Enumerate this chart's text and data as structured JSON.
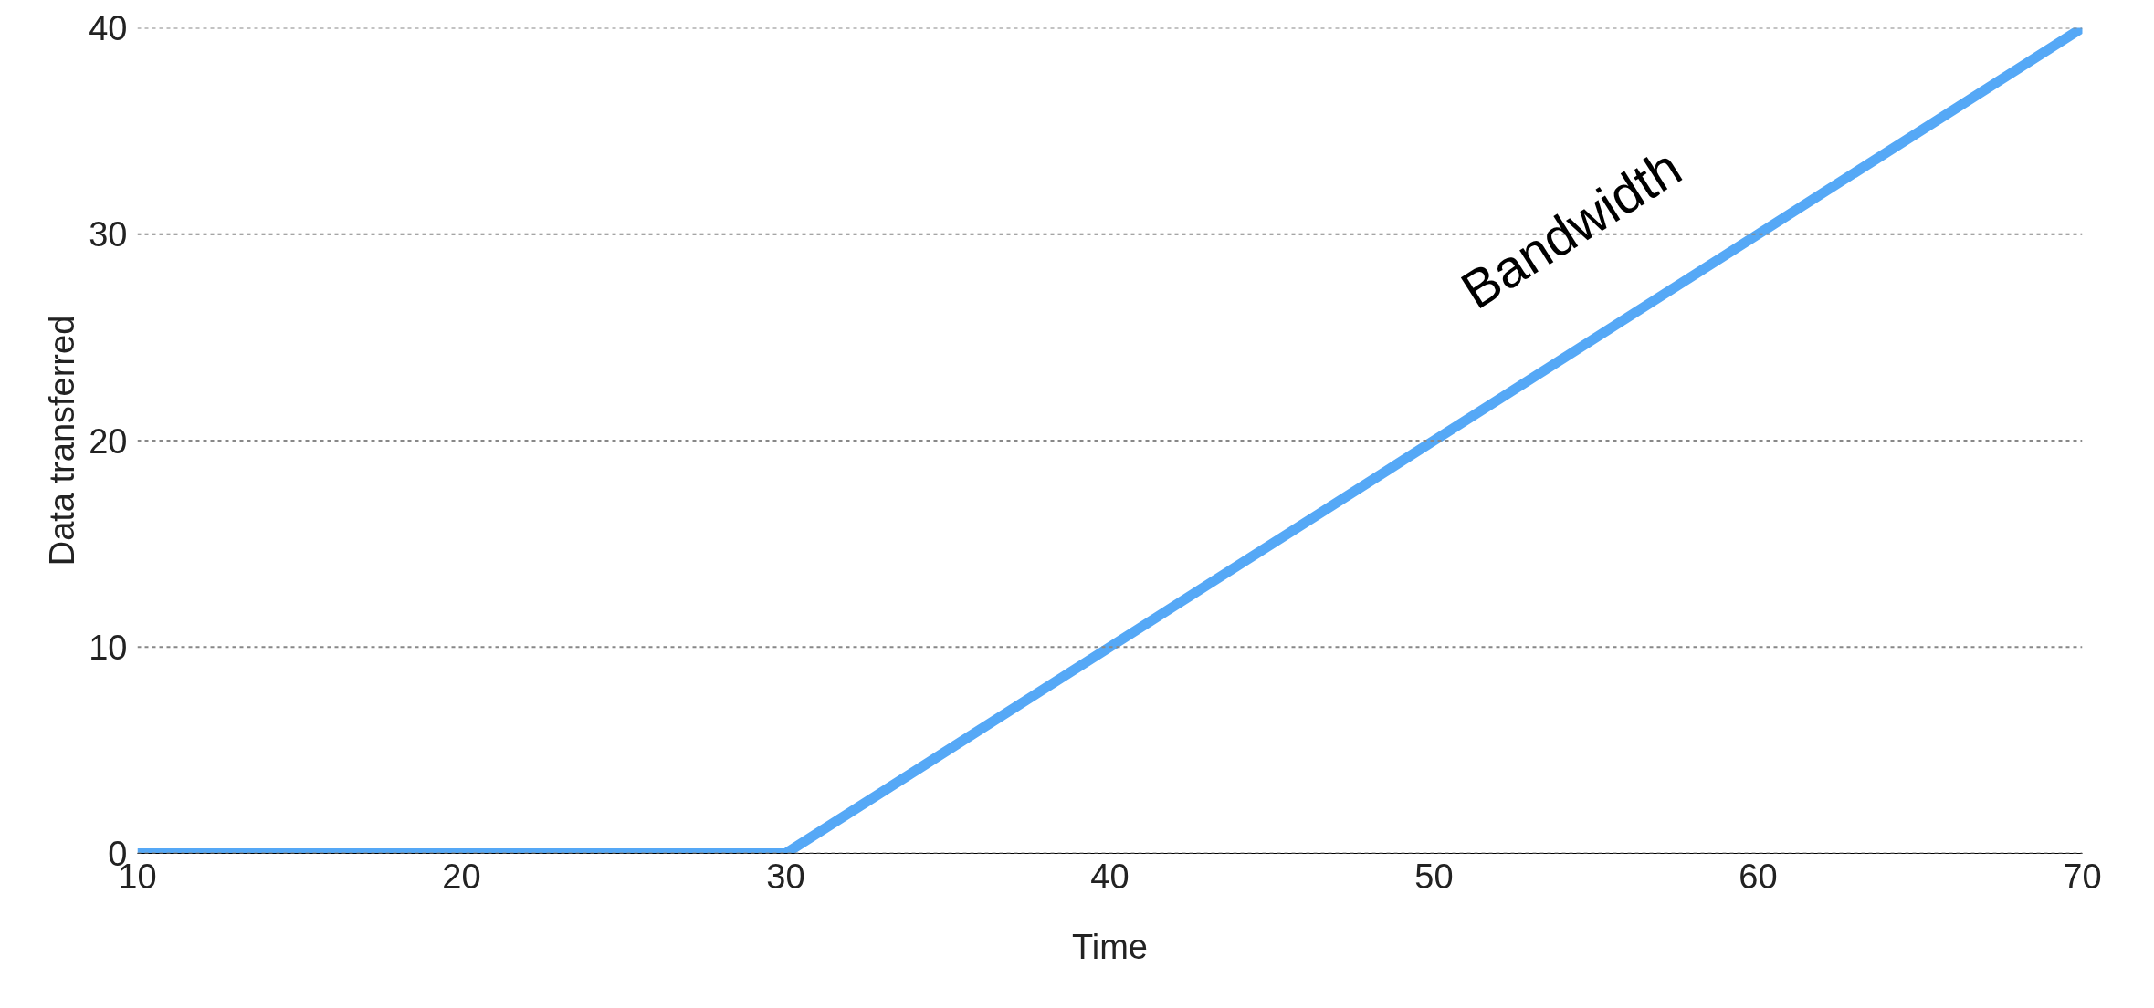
{
  "chart_data": {
    "type": "line",
    "xlabel": "Time",
    "ylabel": "Data transferred",
    "x": [
      10,
      30,
      70
    ],
    "series": [
      {
        "color": "#55a8f6",
        "values": [
          0,
          0,
          40
        ]
      }
    ],
    "xlim": [
      10,
      70
    ],
    "ylim": [
      0,
      40
    ],
    "xticks": [
      10,
      20,
      30,
      40,
      50,
      60,
      70
    ],
    "yticks": [
      0,
      10,
      20,
      30,
      40
    ],
    "grid": "y",
    "marker": "none",
    "line_style": "solid",
    "annotations": [
      "Bandwidth"
    ]
  }
}
